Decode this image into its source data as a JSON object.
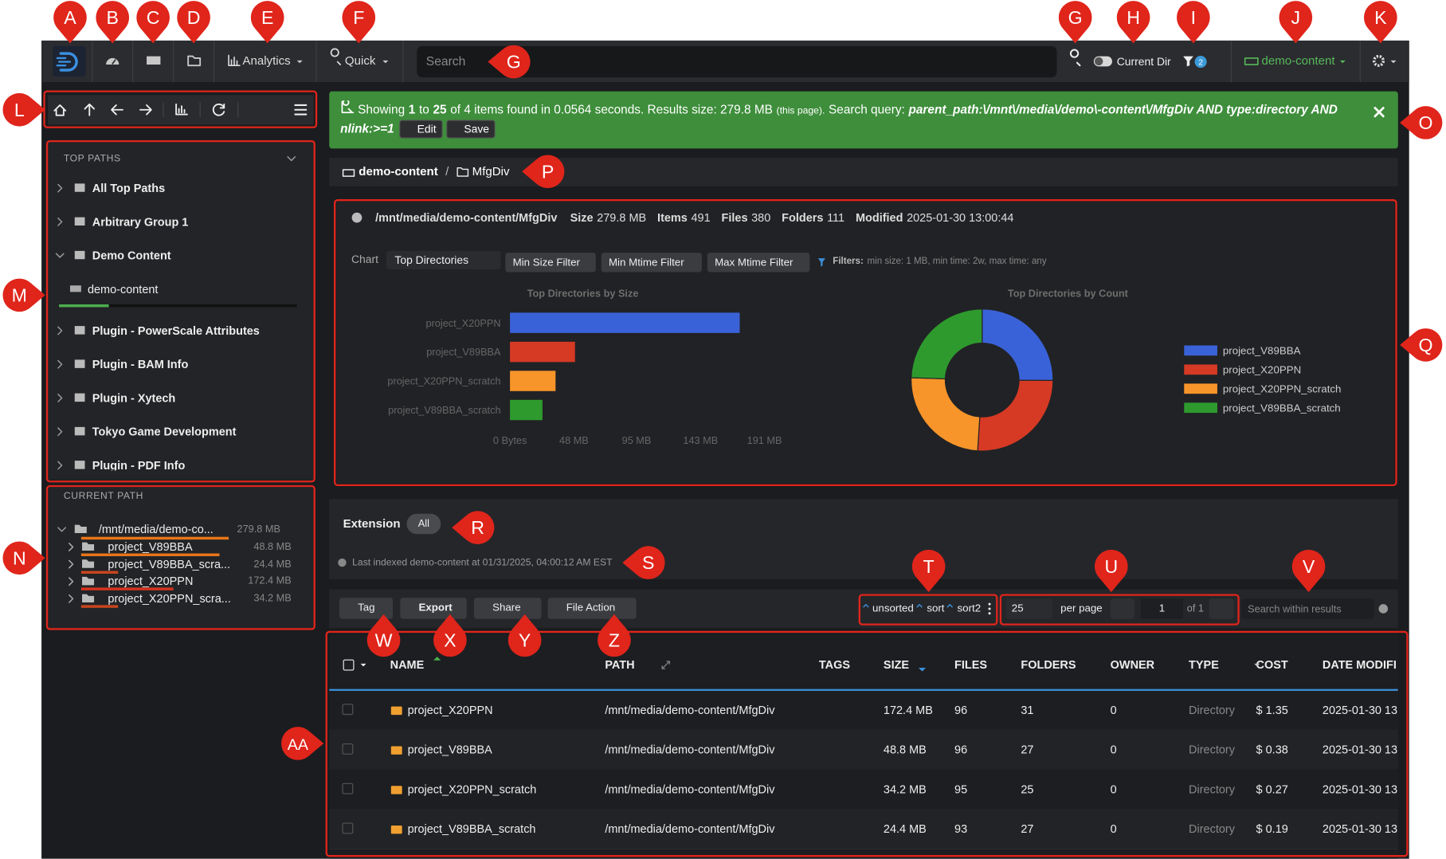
{
  "navbar": {
    "menus": [
      "Analytics",
      "Quick"
    ],
    "search_placeholder": "Search",
    "current_dir": "Current Dir",
    "filter_count": 2,
    "index": "demo-content"
  },
  "alert": {
    "showing": "Showing",
    "from": 1,
    "to_word": "to",
    "to": 25,
    "summary": "of 4 items found in 0.0564 seconds. Results size: 279.8 MB",
    "note": "(this page).",
    "query_label": "Search query:",
    "query": "parent_path:\\/mnt\\/media\\/demo\\-content\\/MfgDiv AND type:directory AND nlink:>=1",
    "buttons": [
      "Edit",
      "Save"
    ]
  },
  "top_paths": {
    "title": "TOP PATHS",
    "groups": [
      {
        "label": "All Top Paths"
      },
      {
        "label": "Arbitrary Group 1"
      },
      {
        "label": "Demo Content",
        "children": [
          "demo-content"
        ]
      },
      {
        "label": "Plugin - PowerScale Attributes"
      },
      {
        "label": "Plugin - BAM Info"
      },
      {
        "label": "Plugin - Xytech"
      },
      {
        "label": "Tokyo Game Development"
      },
      {
        "label": "Plugin - PDF Info"
      }
    ]
  },
  "current_path": {
    "title": "CURRENT PATH",
    "root": {
      "name": "/mnt/media/demo-co...",
      "size": "279.8 MB"
    },
    "children": [
      {
        "name": "project_V89BBA",
        "size": "48.8 MB"
      },
      {
        "name": "project_V89BBA_scra...",
        "size": "24.4 MB"
      },
      {
        "name": "project_X20PPN",
        "size": "172.4 MB"
      },
      {
        "name": "project_X20PPN_scra...",
        "size": "34.2 MB"
      }
    ]
  },
  "breadcrumb": {
    "root": "demo-content",
    "separator": "/",
    "current": "MfgDiv"
  },
  "info": {
    "path": "/mnt/media/demo-content/MfgDiv",
    "stats": [
      {
        "label": "Size",
        "value": "279.8 MB"
      },
      {
        "label": "Items",
        "value": 491
      },
      {
        "label": "Files",
        "value": 380
      },
      {
        "label": "Folders",
        "value": 111
      },
      {
        "label": "Modified",
        "value": "2025-01-30 13:00:44"
      }
    ]
  },
  "chart_controls": {
    "label": "Chart",
    "selected": "Top Directories",
    "filter_buttons": [
      "Min Size Filter",
      "Min Mtime Filter",
      "Max Mtime Filter"
    ],
    "filters_label": "Filters:",
    "filters": "min size: 1 MB, min time: 2w, max time: any"
  },
  "chart_data": [
    {
      "type": "bar",
      "orientation": "horizontal",
      "title": "Top Directories by Size",
      "categories": [
        "project_X20PPN",
        "project_V89BBA",
        "project_X20PPN_scratch",
        "project_V89BBA_scratch"
      ],
      "values": [
        172.4,
        48.8,
        34.2,
        24.4
      ],
      "colors": [
        "#3a62d8",
        "#d63a25",
        "#f7952a",
        "#2e9a2e"
      ],
      "xlim": [
        0,
        191
      ],
      "xticks": [
        {
          "value": 0,
          "label": "0 Bytes"
        },
        {
          "value": 48,
          "label": "48 MB"
        },
        {
          "value": 95,
          "label": "95 MB"
        },
        {
          "value": 143,
          "label": "143 MB"
        },
        {
          "value": 191,
          "label": "191 MB"
        }
      ]
    },
    {
      "type": "pie",
      "donut": true,
      "title": "Top Directories by Count",
      "categories": [
        "project_V89BBA",
        "project_X20PPN",
        "project_X20PPN_scratch",
        "project_V89BBA_scratch"
      ],
      "values": [
        123,
        127,
        120,
        120
      ],
      "colors": [
        "#3a62d8",
        "#d63a25",
        "#f7952a",
        "#2e9a2e"
      ],
      "legend": "right"
    }
  ],
  "extension": {
    "label": "Extension",
    "selected": "All",
    "last_indexed": "Last indexed demo-content at 01/31/2025, 04:00:12 AM EST"
  },
  "actions": {
    "buttons": [
      "Tag",
      "Export",
      "Share",
      "File Action"
    ],
    "sort": [
      "unsorted",
      "sort",
      "sort2"
    ],
    "per_page": 25,
    "per_page_label": "per page",
    "page": 1,
    "page_total": "of 1",
    "search_placeholder": "Search within results"
  },
  "table": {
    "headers": [
      "NAME",
      "PATH",
      "TAGS",
      "SIZE",
      "FILES",
      "FOLDERS",
      "OWNER",
      "TYPE",
      "COST",
      "DATE MODIFI"
    ],
    "rows": [
      {
        "name": "project_X20PPN",
        "path": "/mnt/media/demo-content/MfgDiv",
        "size": "172.4 MB",
        "files": 96,
        "folders": 31,
        "owner": 0,
        "type": "Directory",
        "cost": "$ 1.35",
        "modified": "2025-01-30 13"
      },
      {
        "name": "project_V89BBA",
        "path": "/mnt/media/demo-content/MfgDiv",
        "size": "48.8 MB",
        "files": 96,
        "folders": 27,
        "owner": 0,
        "type": "Directory",
        "cost": "$ 0.38",
        "modified": "2025-01-30 13"
      },
      {
        "name": "project_X20PPN_scratch",
        "path": "/mnt/media/demo-content/MfgDiv",
        "size": "34.2 MB",
        "files": 95,
        "folders": 25,
        "owner": 0,
        "type": "Directory",
        "cost": "$ 0.27",
        "modified": "2025-01-30 13"
      },
      {
        "name": "project_V89BBA_scratch",
        "path": "/mnt/media/demo-content/MfgDiv",
        "size": "24.4 MB",
        "files": 93,
        "folders": 27,
        "owner": 0,
        "type": "Directory",
        "cost": "$ 0.19",
        "modified": "2025-01-30 13"
      }
    ]
  },
  "callouts": [
    "A",
    "B",
    "C",
    "D",
    "E",
    "F",
    "G",
    "G",
    "H",
    "I",
    "J",
    "K",
    "L",
    "M",
    "N",
    "O",
    "P",
    "Q",
    "R",
    "S",
    "T",
    "U",
    "V",
    "W",
    "X",
    "Y",
    "Z",
    "AA"
  ]
}
